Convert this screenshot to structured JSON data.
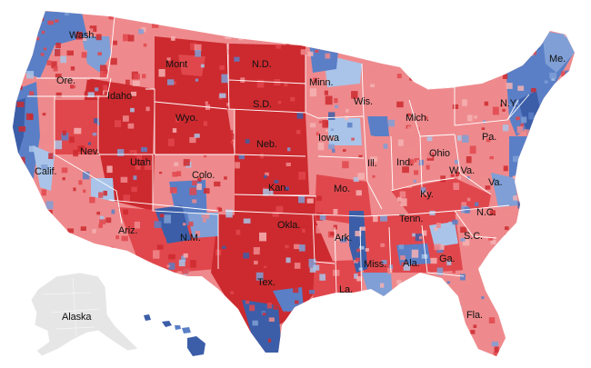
{
  "map": {
    "palette": {
      "dark_red": "#cc2a2f",
      "red": "#e0474c",
      "light_red": "#ee8a8d",
      "pale_red": "#f4b2b3",
      "pale_blue": "#a9c4e8",
      "light_blue": "#7f9fd6",
      "blue": "#5a7fc6",
      "dark_blue": "#3c5ea8",
      "alaska_gray": "#e6e6e6",
      "border": "#ffffff"
    },
    "labels": {
      "wash": "Wash.",
      "ore": "Ore.",
      "calif": "Calif.",
      "nev": "Nev.",
      "idaho": "Idaho",
      "mont": "Mont",
      "wyo": "Wyo.",
      "utah": "Utah",
      "ariz": "Ariz.",
      "colo": "Colo.",
      "nm": "N.M.",
      "nd": "N.D.",
      "sd": "S.D.",
      "neb": "Neb.",
      "kan": "Kan.",
      "okla": "Okla.",
      "tex": "Tex.",
      "minn": "Minn.",
      "iowa": "Iowa",
      "mo": "Mo.",
      "ark": "Ark.",
      "la": "La.",
      "wis": "Wis.",
      "ill": "Ill.",
      "mich": "Mich.",
      "ind": "Ind.",
      "ohio": "Ohio",
      "ky": "Ky.",
      "tenn": "Tenn.",
      "miss": "Miss.",
      "ala": "Ala.",
      "ga": "Ga.",
      "fla": "Fla.",
      "sc": "S.C.",
      "nc": "N.C.",
      "va": "Va.",
      "wva": "W.Va.",
      "pa": "Pa.",
      "ny": "N.Y.",
      "me": "Me.",
      "alaska": "Alaska"
    }
  }
}
